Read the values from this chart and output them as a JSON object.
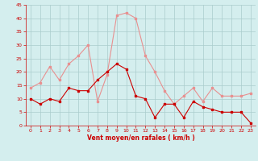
{
  "hours": [
    0,
    1,
    2,
    3,
    4,
    5,
    6,
    7,
    8,
    9,
    10,
    11,
    12,
    13,
    14,
    15,
    16,
    17,
    18,
    19,
    20,
    21,
    22,
    23
  ],
  "wind_mean": [
    10,
    8,
    10,
    9,
    14,
    13,
    13,
    17,
    20,
    23,
    21,
    11,
    10,
    3,
    8,
    8,
    3,
    9,
    7,
    6,
    5,
    5,
    5,
    1
  ],
  "wind_gust": [
    14,
    16,
    22,
    17,
    23,
    26,
    30,
    9,
    19,
    41,
    42,
    40,
    26,
    20,
    13,
    8,
    11,
    14,
    9,
    14,
    11,
    11,
    11,
    12
  ],
  "xlabel": "Vent moyen/en rafales ( km/h )",
  "ylim": [
    0,
    45
  ],
  "yticks": [
    0,
    5,
    10,
    15,
    20,
    25,
    30,
    35,
    40,
    45
  ],
  "xticks": [
    0,
    1,
    2,
    3,
    4,
    5,
    6,
    7,
    8,
    9,
    10,
    11,
    12,
    13,
    14,
    15,
    16,
    17,
    18,
    19,
    20,
    21,
    22,
    23
  ],
  "mean_color": "#cc0000",
  "gust_color": "#e89090",
  "bg_color": "#d4eeee",
  "grid_color": "#aacccc",
  "axis_color": "#cc0000",
  "tick_color": "#cc0000",
  "label_color": "#cc0000",
  "spine_color": "#888888"
}
